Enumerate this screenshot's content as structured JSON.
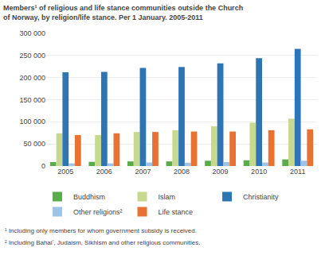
{
  "chart_data": {
    "type": "bar",
    "title": "Members¹ of religious and life stance communities outside the Church of Norway, by religion/life stance. Per 1 January. 2005-2011",
    "categories": [
      "2005",
      "2006",
      "2007",
      "2008",
      "2009",
      "2010",
      "2011"
    ],
    "series": [
      {
        "name": "Buddhism",
        "color": "#5aab4b",
        "values": [
          9000,
          9500,
          10500,
          10500,
          12000,
          13000,
          15000
        ]
      },
      {
        "name": "Islam",
        "color": "#c6d98f",
        "values": [
          74000,
          70000,
          77000,
          81000,
          90000,
          98000,
          107000
        ]
      },
      {
        "name": "Christianity",
        "color": "#2e75b6",
        "values": [
          212000,
          213000,
          222000,
          224000,
          232000,
          244000,
          265000
        ]
      },
      {
        "name": "Other religions²",
        "color": "#9dc3e6",
        "values": [
          6000,
          6000,
          8000,
          7500,
          9000,
          8000,
          12000
        ]
      },
      {
        "name": "Life stance",
        "color": "#e97132",
        "values": [
          70000,
          74000,
          77000,
          78000,
          78000,
          81000,
          83000
        ]
      }
    ],
    "ylim": [
      0,
      300000
    ],
    "yticks": [
      0,
      {
        "value": 50000,
        "label": "50 000"
      },
      {
        "value": 100000,
        "label": "100 000"
      },
      {
        "value": 150000,
        "label": "150 000"
      },
      {
        "value": 200000,
        "label": "200 000"
      },
      {
        "value": 250000,
        "label": "250 000"
      },
      {
        "value": 300000,
        "label": "300 000"
      }
    ],
    "grid": true,
    "legend": "bottom",
    "annotations": [
      "¹ Including only members for whom government subsidy is received.",
      "² Including Bahaiʼ, Judaism, Sikhism and other religious communities."
    ]
  }
}
